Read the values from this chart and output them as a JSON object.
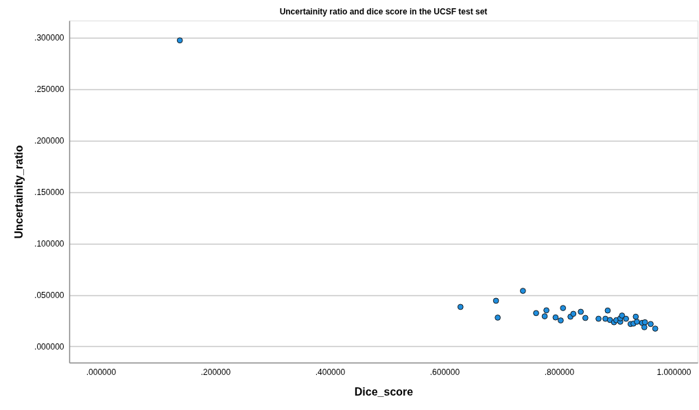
{
  "chart_data": {
    "type": "scatter",
    "title": "Uncertainity ratio and dice score in the UCSF test set",
    "xlabel": "Dice_score",
    "ylabel": "Uncertainity_ratio",
    "x": [
      0.138,
      0.628,
      0.69,
      0.693,
      0.737,
      0.76,
      0.778,
      0.775,
      0.794,
      0.803,
      0.807,
      0.82,
      0.825,
      0.838,
      0.846,
      0.869,
      0.881,
      0.885,
      0.889,
      0.896,
      0.9,
      0.907,
      0.907,
      0.91,
      0.917,
      0.925,
      0.93,
      0.934,
      0.936,
      0.945,
      0.949,
      0.95,
      0.96,
      0.968
    ],
    "series": [
      {
        "color": "#1f8fe0",
        "values": [
          0.2973,
          0.0384,
          0.0444,
          0.028,
          0.054,
          0.0324,
          0.0351,
          0.0293,
          0.0282,
          0.0253,
          0.0373,
          0.0289,
          0.0317,
          0.0337,
          0.0277,
          0.0269,
          0.0269,
          0.0349,
          0.0257,
          0.0235,
          0.0255,
          0.024,
          0.0273,
          0.03,
          0.0269,
          0.0218,
          0.0222,
          0.0289,
          0.024,
          0.0229,
          0.0187,
          0.0235,
          0.0218,
          0.0173
        ]
      }
    ],
    "xlim": [
      -0.055,
      1.042
    ],
    "ylim": [
      -0.0157,
      0.3165
    ],
    "xticks": [
      {
        "value": 0,
        "label": ".000000"
      },
      {
        "value": 0.2,
        "label": ".200000"
      },
      {
        "value": 0.4,
        "label": ".400000"
      },
      {
        "value": 0.6,
        "label": ".600000"
      },
      {
        "value": 0.8,
        "label": ".800000"
      },
      {
        "value": 1.0,
        "label": "1.000000"
      }
    ],
    "yticks": [
      {
        "value": 0,
        "label": ".000000"
      },
      {
        "value": 0.05,
        "label": ".050000"
      },
      {
        "value": 0.1,
        "label": ".100000"
      },
      {
        "value": 0.15,
        "label": ".150000"
      },
      {
        "value": 0.2,
        "label": ".200000"
      },
      {
        "value": 0.25,
        "label": ".250000"
      },
      {
        "value": 0.3,
        "label": ".300000"
      }
    ],
    "grid": "y",
    "marker": "circle",
    "legend": false
  }
}
